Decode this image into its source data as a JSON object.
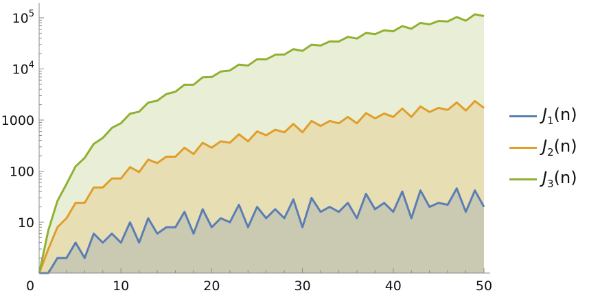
{
  "chart_data": {
    "type": "area",
    "title": "",
    "xlabel": "",
    "ylabel": "",
    "xlim": [
      0,
      50
    ],
    "ylim": [
      0.7,
      200000
    ],
    "y_scale": "log",
    "grid": false,
    "legend_position": "right",
    "x_ticks": [
      0,
      10,
      20,
      30,
      40,
      50
    ],
    "x_tick_labels": [
      "0",
      "10",
      "20",
      "30",
      "40",
      "50"
    ],
    "y_ticks": [
      {
        "value": 10,
        "base": "10",
        "exp": ""
      },
      {
        "value": 100,
        "base": "100",
        "exp": ""
      },
      {
        "value": 1000,
        "base": "1000",
        "exp": ""
      },
      {
        "value": 10000,
        "base": "10",
        "exp": "4"
      },
      {
        "value": 100000,
        "base": "10",
        "exp": "5"
      }
    ],
    "x": [
      1,
      2,
      3,
      4,
      5,
      6,
      7,
      8,
      9,
      10,
      11,
      12,
      13,
      14,
      15,
      16,
      17,
      18,
      19,
      20,
      21,
      22,
      23,
      24,
      25,
      26,
      27,
      28,
      29,
      30,
      31,
      32,
      33,
      34,
      35,
      36,
      37,
      38,
      39,
      40,
      41,
      42,
      43,
      44,
      45,
      46,
      47,
      48,
      49,
      50
    ],
    "series": [
      {
        "label_fn": "J",
        "label_sub": "1",
        "label_arg": "(n)",
        "color": "#5a7db5",
        "fill": "#5a7db5",
        "values": [
          1,
          1,
          2,
          2,
          4,
          2,
          6,
          4,
          6,
          4,
          10,
          4,
          12,
          6,
          8,
          8,
          16,
          6,
          18,
          8,
          12,
          10,
          22,
          8,
          20,
          12,
          18,
          12,
          28,
          8,
          30,
          16,
          20,
          16,
          24,
          12,
          36,
          18,
          24,
          16,
          40,
          12,
          42,
          20,
          24,
          22,
          46,
          16,
          42,
          20
        ]
      },
      {
        "label_fn": "J",
        "label_sub": "2",
        "label_arg": "(n)",
        "color": "#e19d29",
        "fill": "#e19d29",
        "values": [
          1,
          3,
          8,
          12,
          24,
          24,
          48,
          48,
          72,
          72,
          120,
          96,
          168,
          144,
          192,
          192,
          288,
          216,
          360,
          288,
          384,
          360,
          528,
          384,
          600,
          504,
          648,
          576,
          840,
          576,
          960,
          768,
          960,
          864,
          1152,
          864,
          1368,
          1080,
          1344,
          1152,
          1680,
          1152,
          1848,
          1440,
          1728,
          1584,
          2208,
          1536,
          2352,
          1728
        ]
      },
      {
        "label_fn": "J",
        "label_sub": "3",
        "label_arg": "(n)",
        "color": "#8fb131",
        "fill": "#8fb131",
        "values": [
          1,
          7,
          26,
          56,
          124,
          182,
          342,
          448,
          702,
          868,
          1330,
          1456,
          2196,
          2394,
          3224,
          3584,
          4912,
          4914,
          6858,
          6944,
          8892,
          9310,
          12166,
          11648,
          15500,
          15372,
          18954,
          19152,
          24388,
          22568,
          29790,
          28672,
          34580,
          34384,
          42408,
          39312,
          50652,
          48006,
          57036,
          54560,
          68920,
          61152,
          79506,
          74480,
          86976,
          85008,
          103822,
          87808,
          117306,
          108500
        ]
      }
    ]
  }
}
